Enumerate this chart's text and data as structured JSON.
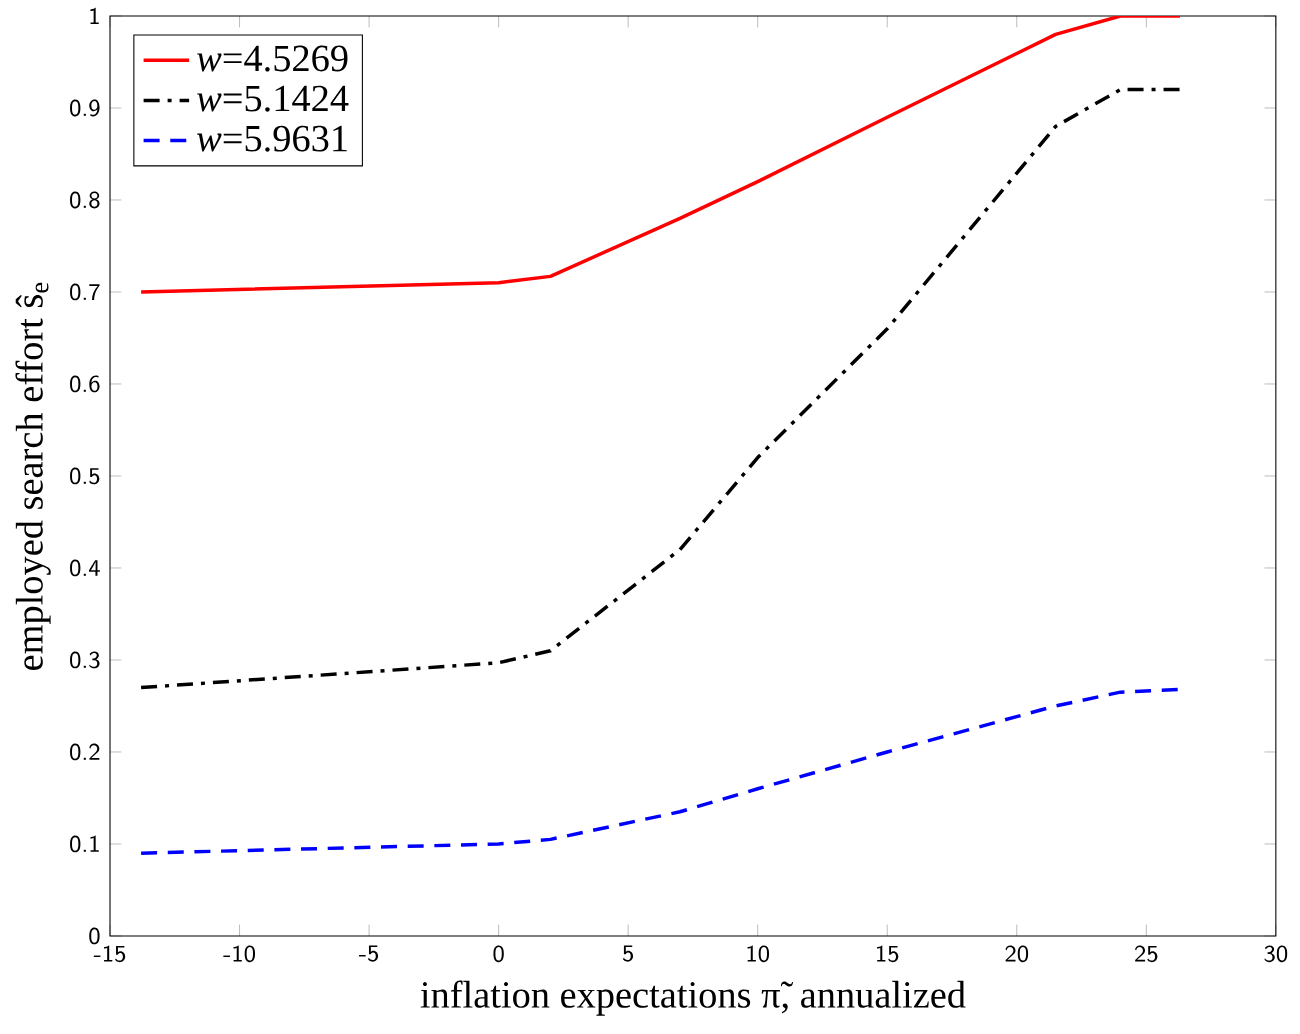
{
  "chart_data": {
    "type": "line",
    "xlabel": "inflation expectations π̃, annualized",
    "ylabel": "employed search effort ŝ$_{e}$",
    "xlim": [
      -15,
      30
    ],
    "ylim": [
      0,
      1
    ],
    "xticks": [
      -15,
      -10,
      -5,
      0,
      5,
      10,
      15,
      20,
      25,
      30
    ],
    "yticks": [
      0,
      0.1,
      0.2,
      0.3,
      0.4,
      0.5,
      0.6,
      0.7,
      0.8,
      0.9,
      1
    ],
    "grid": false,
    "legend": "top left",
    "marker": "none",
    "series": [
      {
        "name": "*w*=4.5269",
        "color": "#ff0000",
        "line_style": "solid",
        "x": [
          -13.8,
          0,
          2,
          7,
          10,
          15,
          21.5,
          24,
          26.3
        ],
        "values": [
          0.7,
          0.71,
          0.717,
          0.78,
          0.82,
          0.89,
          0.98,
          1.0,
          1.0
        ]
      },
      {
        "name": "*w*=5.1424",
        "color": "#000000",
        "line_style": "dashdot",
        "x": [
          -13.8,
          0,
          2,
          7,
          10,
          15,
          21.5,
          24,
          26.3
        ],
        "values": [
          0.27,
          0.297,
          0.31,
          0.42,
          0.52,
          0.66,
          0.88,
          0.92,
          0.92
        ]
      },
      {
        "name": "*w*=5.9631",
        "color": "#0000ff",
        "line_style": "dashed",
        "x": [
          -13.8,
          0,
          2,
          7,
          10,
          15,
          21.5,
          24,
          26.3
        ],
        "values": [
          0.09,
          0.1,
          0.105,
          0.135,
          0.16,
          0.2,
          0.25,
          0.265,
          0.268
        ]
      }
    ]
  }
}
